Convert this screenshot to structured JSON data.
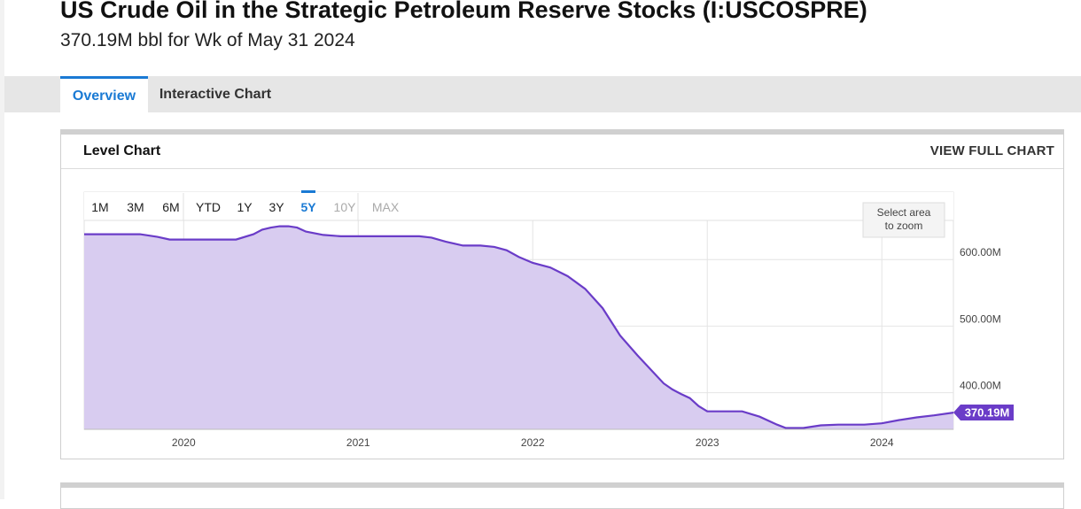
{
  "page": {
    "title": "US Crude Oil in the Strategic Petroleum Reserve Stocks (I:USCOSPRE)",
    "subtitle": "370.19M bbl for Wk of May 31 2024"
  },
  "tabs": [
    {
      "label": "Overview",
      "active": true
    },
    {
      "label": "Interactive Chart",
      "active": false
    }
  ],
  "card": {
    "title": "Level Chart",
    "link": "VIEW FULL CHART"
  },
  "range_buttons": [
    {
      "label": "1M",
      "state": "normal"
    },
    {
      "label": "3M",
      "state": "normal"
    },
    {
      "label": "6M",
      "state": "normal"
    },
    {
      "label": "YTD",
      "state": "normal"
    },
    {
      "label": "1Y",
      "state": "normal"
    },
    {
      "label": "3Y",
      "state": "normal"
    },
    {
      "label": "5Y",
      "state": "active"
    },
    {
      "label": "10Y",
      "state": "disabled"
    },
    {
      "label": "MAX",
      "state": "disabled"
    }
  ],
  "zoom_hint": [
    "Select area",
    "to zoom"
  ],
  "colors": {
    "accent": "#1a7ad4",
    "line": "#6a3cc8",
    "area": "#d8ccf0",
    "label_bg": "#6a3cc8"
  },
  "chart_data": {
    "type": "area",
    "title": "",
    "xlabel": "",
    "ylabel": "",
    "x_ticks": [
      2020,
      2021,
      2022,
      2023,
      2024
    ],
    "y_ticks": [
      {
        "value": 400,
        "label": "400.00M"
      },
      {
        "value": 500,
        "label": "500.00M"
      },
      {
        "value": 600,
        "label": "600.00M"
      }
    ],
    "xlim": [
      2019.43,
      2024.41
    ],
    "ylim": [
      345,
      700
    ],
    "grid": true,
    "last_value": 370.19,
    "last_label": "370.19M",
    "series": [
      {
        "unit": "M bbl",
        "x": [
          2019.43,
          2019.6,
          2019.75,
          2019.85,
          2019.92,
          2020.05,
          2020.2,
          2020.3,
          2020.4,
          2020.45,
          2020.5,
          2020.55,
          2020.6,
          2020.65,
          2020.7,
          2020.8,
          2020.9,
          2021.0,
          2021.1,
          2021.25,
          2021.35,
          2021.42,
          2021.5,
          2021.6,
          2021.7,
          2021.78,
          2021.85,
          2021.92,
          2022.0,
          2022.1,
          2022.2,
          2022.3,
          2022.4,
          2022.5,
          2022.6,
          2022.65,
          2022.7,
          2022.75,
          2022.8,
          2022.85,
          2022.9,
          2022.95,
          2023.0,
          2023.1,
          2023.2,
          2023.3,
          2023.4,
          2023.45,
          2023.55,
          2023.65,
          2023.75,
          2023.9,
          2024.0,
          2024.1,
          2024.2,
          2024.3,
          2024.41
        ],
        "values": [
          638,
          638,
          638,
          634,
          630,
          630,
          630,
          630,
          638,
          645,
          648,
          650,
          650,
          648,
          642,
          637,
          635,
          635,
          635,
          635,
          635,
          633,
          627,
          621,
          621,
          619,
          614,
          604,
          595,
          588,
          575,
          556,
          527,
          486,
          456,
          442,
          428,
          414,
          405,
          398,
          392,
          380,
          372,
          372,
          372,
          364,
          352,
          347,
          347,
          351,
          352,
          352,
          354,
          359,
          363,
          366,
          370.19
        ]
      }
    ]
  }
}
